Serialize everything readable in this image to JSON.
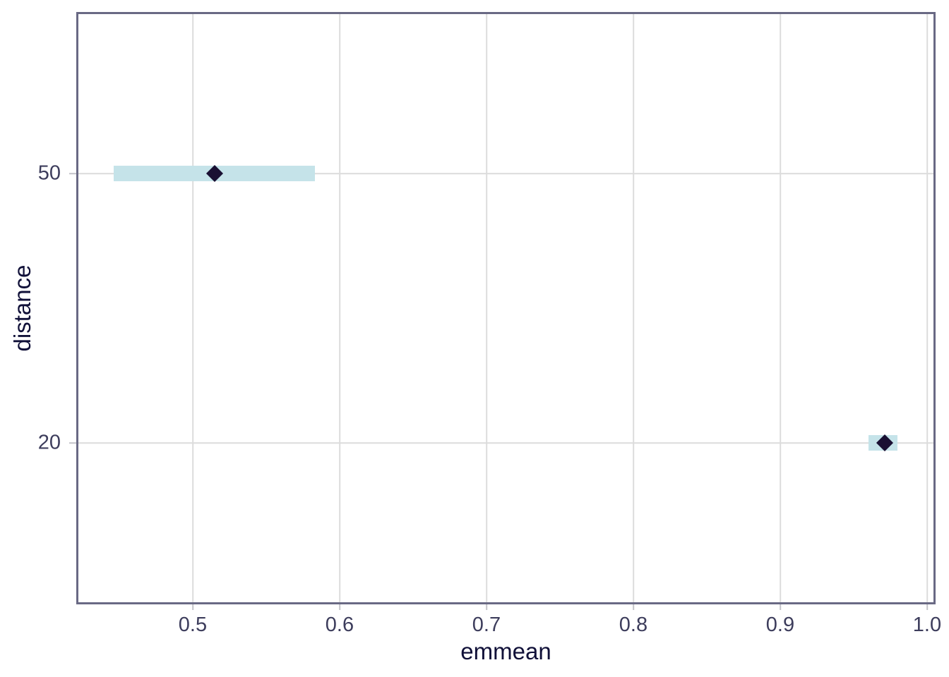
{
  "chart_data": {
    "type": "scatter",
    "subtype": "pointrange-horizontal",
    "title": "",
    "xlabel": "emmean",
    "ylabel": "distance",
    "categories": [
      "50",
      "20"
    ],
    "x_ticks": [
      0.5,
      0.6,
      0.7,
      0.8,
      0.9,
      1.0
    ],
    "x_tick_labels": [
      "0.5",
      "0.6",
      "0.7",
      "0.8",
      "0.9",
      "1.0"
    ],
    "xlim": [
      0.4207,
      1.0058
    ],
    "grid": "major-only",
    "legend": "none",
    "points": [
      {
        "category": "50",
        "emmean": 0.515,
        "ci_lower": 0.446,
        "ci_upper": 0.583
      },
      {
        "category": "20",
        "emmean": 0.971,
        "ci_lower": 0.96,
        "ci_upper": 0.98
      }
    ],
    "colors": {
      "background": "#ffffff",
      "ci_fill": "#c5e3e9",
      "point": "#1a1033",
      "grid": "#dcdcdc",
      "axis_border": "#696984",
      "tick_mark": "#c4c4ca",
      "tick_label": "#3d3d5c",
      "axis_title": "#101038"
    }
  }
}
